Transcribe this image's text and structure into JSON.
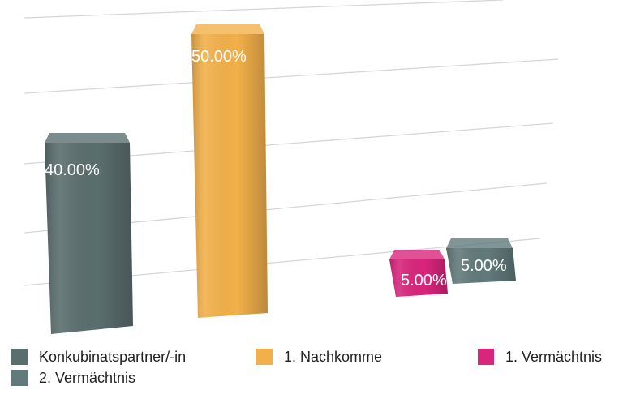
{
  "chart_data": {
    "type": "bar",
    "categories": [
      "Konkubinatspartner/-in",
      "1. Nachkomme",
      "1. Vermächtnis",
      "2. Vermächtnis"
    ],
    "values": [
      40,
      50,
      5,
      5
    ],
    "data_labels": [
      "40.00%",
      "50.00%",
      "5.00%",
      "5.00%"
    ],
    "colors": [
      "#5b6e6e",
      "#f2b04a",
      "#d9257c",
      "#627a7a"
    ],
    "ylim": [
      0,
      50
    ],
    "grid": true,
    "legend_position": "bottom",
    "style": "3d-perspective"
  },
  "legend": [
    {
      "label": "Konkubinatspartner/-in",
      "color": "#5b6e6e"
    },
    {
      "label": "1. Nachkomme",
      "color": "#f2b04a"
    },
    {
      "label": "1. Vermächtnis",
      "color": "#d9257c"
    },
    {
      "label": "2. Vermächtnis",
      "color": "#627a7a"
    }
  ]
}
